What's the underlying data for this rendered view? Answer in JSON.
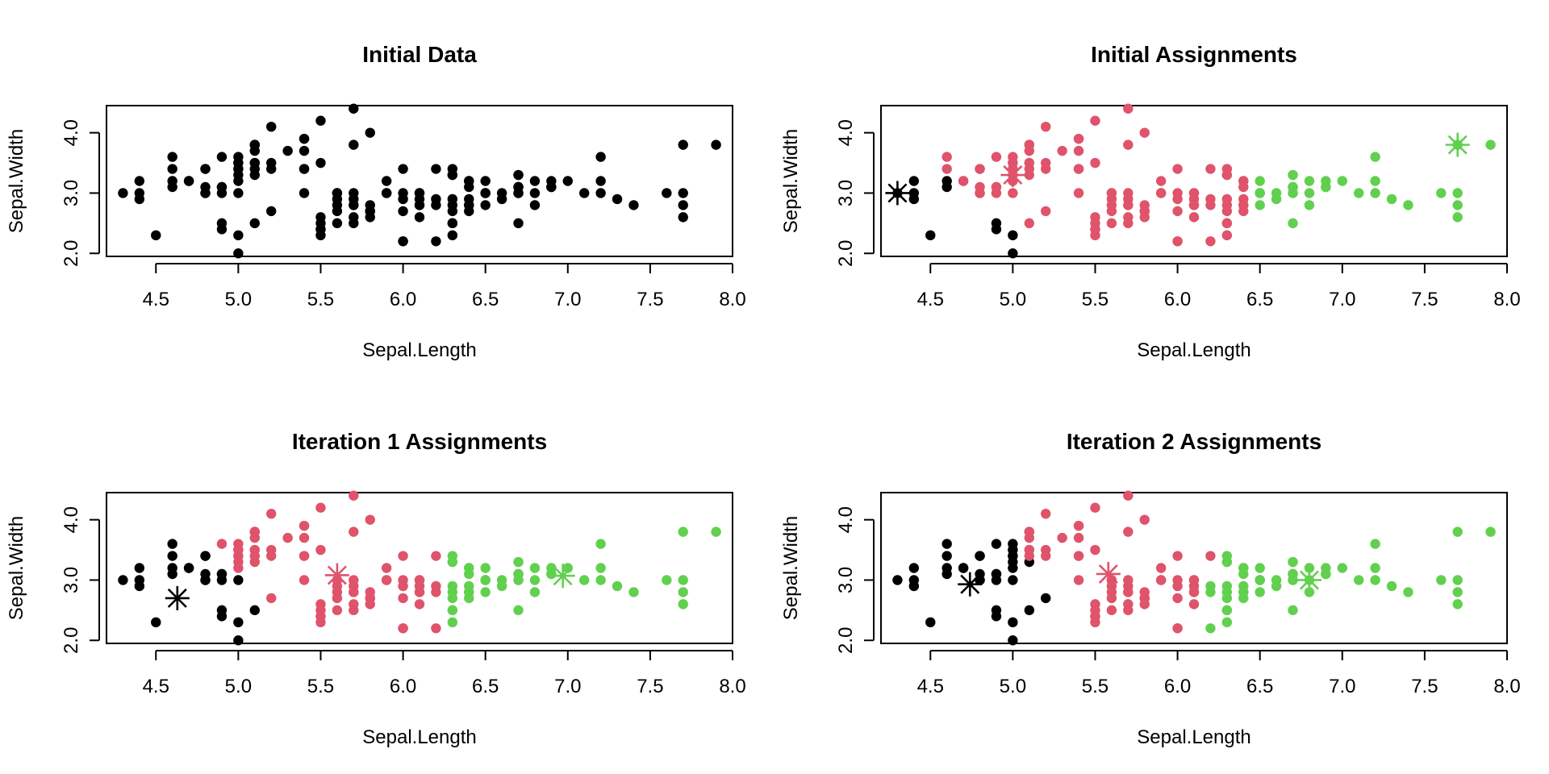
{
  "colors": {
    "cluster1": "#000000",
    "cluster2": "#DF536B",
    "cluster3": "#61D04F",
    "unassigned": "#000000"
  },
  "chart_data": [
    {
      "type": "scatter",
      "title": "Initial Data",
      "xlabel": "Sepal.Length",
      "ylabel": "Sepal.Width",
      "xlim": [
        4.2,
        8.0
      ],
      "ylim": [
        1.95,
        4.45
      ],
      "xticks": [
        "4.5",
        "5.0",
        "5.5",
        "6.0",
        "6.5",
        "7.0",
        "7.5",
        "8.0"
      ],
      "yticks": [
        "2.0",
        "3.0",
        "4.0"
      ],
      "assignment_rule": "none",
      "centroids": []
    },
    {
      "type": "scatter",
      "title": "Initial Assignments",
      "xlabel": "Sepal.Length",
      "ylabel": "Sepal.Width",
      "xlim": [
        4.2,
        8.0
      ],
      "ylim": [
        1.95,
        4.45
      ],
      "xticks": [
        "4.5",
        "5.0",
        "5.5",
        "6.0",
        "6.5",
        "7.0",
        "7.5",
        "8.0"
      ],
      "yticks": [
        "2.0",
        "3.0",
        "4.0"
      ],
      "assignment_rule": "nearest_centroid",
      "centroids": [
        {
          "x": 4.3,
          "y": 3.0,
          "cluster": 1
        },
        {
          "x": 5.0,
          "y": 3.3,
          "cluster": 2
        },
        {
          "x": 7.7,
          "y": 3.8,
          "cluster": 3
        }
      ]
    },
    {
      "type": "scatter",
      "title": "Iteration 1 Assignments",
      "xlabel": "Sepal.Length",
      "ylabel": "Sepal.Width",
      "xlim": [
        4.2,
        8.0
      ],
      "ylim": [
        1.95,
        4.45
      ],
      "xticks": [
        "4.5",
        "5.0",
        "5.5",
        "6.0",
        "6.5",
        "7.0",
        "7.5",
        "8.0"
      ],
      "yticks": [
        "2.0",
        "3.0",
        "4.0"
      ],
      "assignment_rule": "nearest_centroid",
      "centroids": [
        {
          "x": 4.63,
          "y": 2.7,
          "cluster": 1
        },
        {
          "x": 5.6,
          "y": 3.08,
          "cluster": 2
        },
        {
          "x": 6.97,
          "y": 3.07,
          "cluster": 3
        }
      ]
    },
    {
      "type": "scatter",
      "title": "Iteration 2 Assignments",
      "xlabel": "Sepal.Length",
      "ylabel": "Sepal.Width",
      "xlim": [
        4.2,
        8.0
      ],
      "ylim": [
        1.95,
        4.45
      ],
      "xticks": [
        "4.5",
        "5.0",
        "5.5",
        "6.0",
        "6.5",
        "7.0",
        "7.5",
        "8.0"
      ],
      "yticks": [
        "2.0",
        "3.0",
        "4.0"
      ],
      "assignment_rule": "nearest_centroid",
      "centroids": [
        {
          "x": 4.74,
          "y": 2.93,
          "cluster": 1
        },
        {
          "x": 5.58,
          "y": 3.1,
          "cluster": 2
        },
        {
          "x": 6.8,
          "y": 3.0,
          "cluster": 3
        }
      ]
    }
  ],
  "points": [
    [
      5.1,
      3.5
    ],
    [
      4.9,
      3.0
    ],
    [
      4.7,
      3.2
    ],
    [
      4.6,
      3.1
    ],
    [
      5.0,
      3.6
    ],
    [
      5.4,
      3.9
    ],
    [
      4.6,
      3.4
    ],
    [
      5.0,
      3.4
    ],
    [
      4.4,
      2.9
    ],
    [
      4.9,
      3.1
    ],
    [
      5.4,
      3.7
    ],
    [
      4.8,
      3.4
    ],
    [
      4.8,
      3.0
    ],
    [
      4.3,
      3.0
    ],
    [
      5.8,
      4.0
    ],
    [
      5.7,
      4.4
    ],
    [
      5.4,
      3.9
    ],
    [
      5.1,
      3.5
    ],
    [
      5.7,
      3.8
    ],
    [
      5.1,
      3.8
    ],
    [
      5.4,
      3.4
    ],
    [
      5.1,
      3.7
    ],
    [
      4.6,
      3.6
    ],
    [
      5.1,
      3.3
    ],
    [
      4.8,
      3.4
    ],
    [
      5.0,
      3.0
    ],
    [
      5.0,
      3.4
    ],
    [
      5.2,
      3.5
    ],
    [
      5.2,
      3.4
    ],
    [
      4.7,
      3.2
    ],
    [
      4.8,
      3.1
    ],
    [
      5.4,
      3.4
    ],
    [
      5.2,
      4.1
    ],
    [
      5.5,
      4.2
    ],
    [
      4.9,
      3.1
    ],
    [
      5.0,
      3.2
    ],
    [
      5.5,
      3.5
    ],
    [
      4.9,
      3.6
    ],
    [
      4.4,
      3.0
    ],
    [
      5.1,
      3.4
    ],
    [
      5.0,
      3.5
    ],
    [
      4.5,
      2.3
    ],
    [
      4.4,
      3.2
    ],
    [
      5.0,
      3.5
    ],
    [
      5.1,
      3.8
    ],
    [
      4.8,
      3.0
    ],
    [
      5.1,
      3.8
    ],
    [
      4.6,
      3.2
    ],
    [
      5.3,
      3.7
    ],
    [
      5.0,
      3.3
    ],
    [
      7.0,
      3.2
    ],
    [
      6.4,
      3.2
    ],
    [
      6.9,
      3.1
    ],
    [
      5.5,
      2.3
    ],
    [
      6.5,
      2.8
    ],
    [
      5.7,
      2.8
    ],
    [
      6.3,
      3.3
    ],
    [
      4.9,
      2.4
    ],
    [
      6.6,
      2.9
    ],
    [
      5.2,
      2.7
    ],
    [
      5.0,
      2.0
    ],
    [
      5.9,
      3.0
    ],
    [
      6.0,
      2.2
    ],
    [
      6.1,
      2.9
    ],
    [
      5.6,
      2.9
    ],
    [
      6.7,
      3.1
    ],
    [
      5.6,
      3.0
    ],
    [
      5.8,
      2.7
    ],
    [
      6.2,
      2.2
    ],
    [
      5.6,
      2.5
    ],
    [
      5.9,
      3.2
    ],
    [
      6.1,
      2.8
    ],
    [
      6.3,
      2.5
    ],
    [
      6.1,
      2.8
    ],
    [
      6.4,
      2.9
    ],
    [
      6.6,
      3.0
    ],
    [
      6.8,
      2.8
    ],
    [
      6.7,
      3.0
    ],
    [
      6.0,
      2.9
    ],
    [
      5.7,
      2.6
    ],
    [
      5.5,
      2.4
    ],
    [
      5.5,
      2.4
    ],
    [
      5.8,
      2.7
    ],
    [
      6.0,
      2.7
    ],
    [
      5.4,
      3.0
    ],
    [
      6.0,
      3.4
    ],
    [
      6.7,
      3.1
    ],
    [
      6.3,
      2.3
    ],
    [
      5.6,
      3.0
    ],
    [
      5.5,
      2.5
    ],
    [
      5.5,
      2.6
    ],
    [
      6.1,
      3.0
    ],
    [
      5.8,
      2.6
    ],
    [
      5.0,
      2.3
    ],
    [
      5.6,
      2.7
    ],
    [
      5.7,
      3.0
    ],
    [
      5.7,
      2.9
    ],
    [
      6.2,
      2.9
    ],
    [
      5.1,
      2.5
    ],
    [
      5.7,
      2.8
    ],
    [
      6.3,
      3.3
    ],
    [
      5.8,
      2.7
    ],
    [
      7.1,
      3.0
    ],
    [
      6.3,
      2.9
    ],
    [
      6.5,
      3.0
    ],
    [
      7.6,
      3.0
    ],
    [
      4.9,
      2.5
    ],
    [
      7.3,
      2.9
    ],
    [
      6.7,
      2.5
    ],
    [
      7.2,
      3.6
    ],
    [
      6.5,
      3.2
    ],
    [
      6.4,
      2.7
    ],
    [
      6.8,
      3.0
    ],
    [
      5.7,
      2.5
    ],
    [
      5.8,
      2.8
    ],
    [
      6.4,
      3.2
    ],
    [
      6.5,
      3.0
    ],
    [
      7.7,
      3.8
    ],
    [
      7.7,
      2.6
    ],
    [
      6.0,
      2.2
    ],
    [
      6.9,
      3.2
    ],
    [
      5.6,
      2.8
    ],
    [
      7.7,
      2.8
    ],
    [
      6.3,
      2.7
    ],
    [
      6.7,
      3.3
    ],
    [
      7.2,
      3.2
    ],
    [
      6.2,
      2.8
    ],
    [
      6.1,
      3.0
    ],
    [
      6.4,
      2.8
    ],
    [
      7.2,
      3.0
    ],
    [
      7.4,
      2.8
    ],
    [
      7.9,
      3.8
    ],
    [
      6.4,
      2.8
    ],
    [
      6.3,
      2.8
    ],
    [
      6.1,
      2.6
    ],
    [
      7.7,
      3.0
    ],
    [
      6.3,
      3.4
    ],
    [
      6.4,
      3.1
    ],
    [
      6.0,
      3.0
    ],
    [
      6.9,
      3.1
    ],
    [
      6.7,
      3.1
    ],
    [
      6.9,
      3.1
    ],
    [
      5.8,
      2.7
    ],
    [
      6.8,
      3.2
    ],
    [
      6.7,
      3.3
    ],
    [
      6.7,
      3.0
    ],
    [
      6.3,
      2.5
    ],
    [
      6.5,
      3.0
    ],
    [
      6.2,
      3.4
    ],
    [
      5.9,
      3.0
    ]
  ]
}
